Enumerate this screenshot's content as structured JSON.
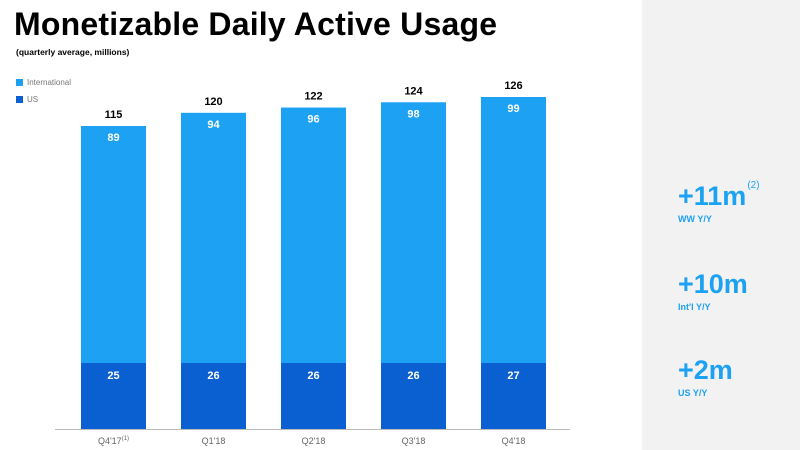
{
  "title": "Monetizable Daily Active Usage",
  "subtitle": "(quarterly average, millions)",
  "colors": {
    "international": "#1da1f2",
    "us": "#0a5fd1",
    "accent": "#1da1f2"
  },
  "legend": [
    {
      "name": "International",
      "color": "#1da1f2"
    },
    {
      "name": "US",
      "color": "#0a5fd1"
    }
  ],
  "chart_data": {
    "type": "bar",
    "stacked": true,
    "categories": [
      "Q4'17",
      "Q1'18",
      "Q2'18",
      "Q3'18",
      "Q4'18"
    ],
    "category_footnotes": [
      "(1)",
      "",
      "",
      "",
      ""
    ],
    "series": [
      {
        "name": "US",
        "values": [
          25,
          26,
          26,
          26,
          27
        ]
      },
      {
        "name": "International",
        "values": [
          89,
          94,
          96,
          98,
          99
        ]
      }
    ],
    "totals": [
      115,
      120,
      122,
      124,
      126
    ],
    "ylim": [
      0,
      126
    ],
    "grid": false,
    "legend_position": "top-left"
  },
  "stats": [
    {
      "value": "+11m",
      "footnote": "(2)",
      "label": "WW Y/Y"
    },
    {
      "value": "+10m",
      "footnote": "",
      "label": "Int'l Y/Y"
    },
    {
      "value": "+2m",
      "footnote": "",
      "label": "US Y/Y"
    }
  ]
}
